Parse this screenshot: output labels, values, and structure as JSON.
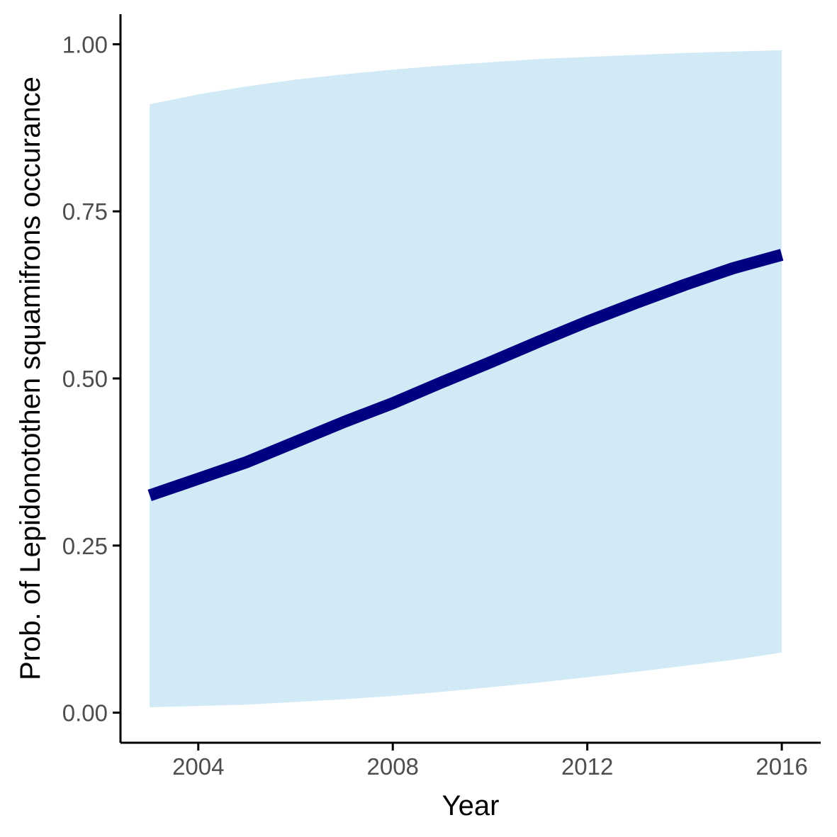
{
  "chart_data": {
    "type": "line",
    "title": "",
    "xlabel": "Year",
    "ylabel": "Prob. of  Lepidonotothen squamifrons  occurance",
    "xlim": [
      2002.4,
      2016.8
    ],
    "ylim": [
      -0.045,
      1.045
    ],
    "x_ticks": [
      2004,
      2008,
      2012,
      2016
    ],
    "x_tick_labels": [
      "2004",
      "2008",
      "2012",
      "2016"
    ],
    "y_ticks": [
      0,
      0.25,
      0.5,
      0.75,
      1
    ],
    "y_tick_labels": [
      "0.00",
      "0.25",
      "0.50",
      "0.75",
      "1.00"
    ],
    "grid": false,
    "legend": "none",
    "series": [
      {
        "x": [
          2003,
          2004,
          2005,
          2006,
          2007,
          2008,
          2009,
          2010,
          2011,
          2012,
          2013,
          2014,
          2015,
          2016
        ],
        "y": [
          0.325,
          0.35,
          0.375,
          0.405,
          0.435,
          0.463,
          0.494,
          0.524,
          0.555,
          0.585,
          0.613,
          0.64,
          0.665,
          0.685
        ],
        "lower": [
          0.008,
          0.01,
          0.012,
          0.016,
          0.02,
          0.025,
          0.031,
          0.038,
          0.045,
          0.053,
          0.061,
          0.07,
          0.079,
          0.09
        ],
        "upper": [
          0.91,
          0.925,
          0.937,
          0.947,
          0.955,
          0.962,
          0.968,
          0.973,
          0.978,
          0.981,
          0.984,
          0.987,
          0.989,
          0.991
        ],
        "line_color": "#000080",
        "band_color": "#d1eaf6"
      }
    ]
  }
}
